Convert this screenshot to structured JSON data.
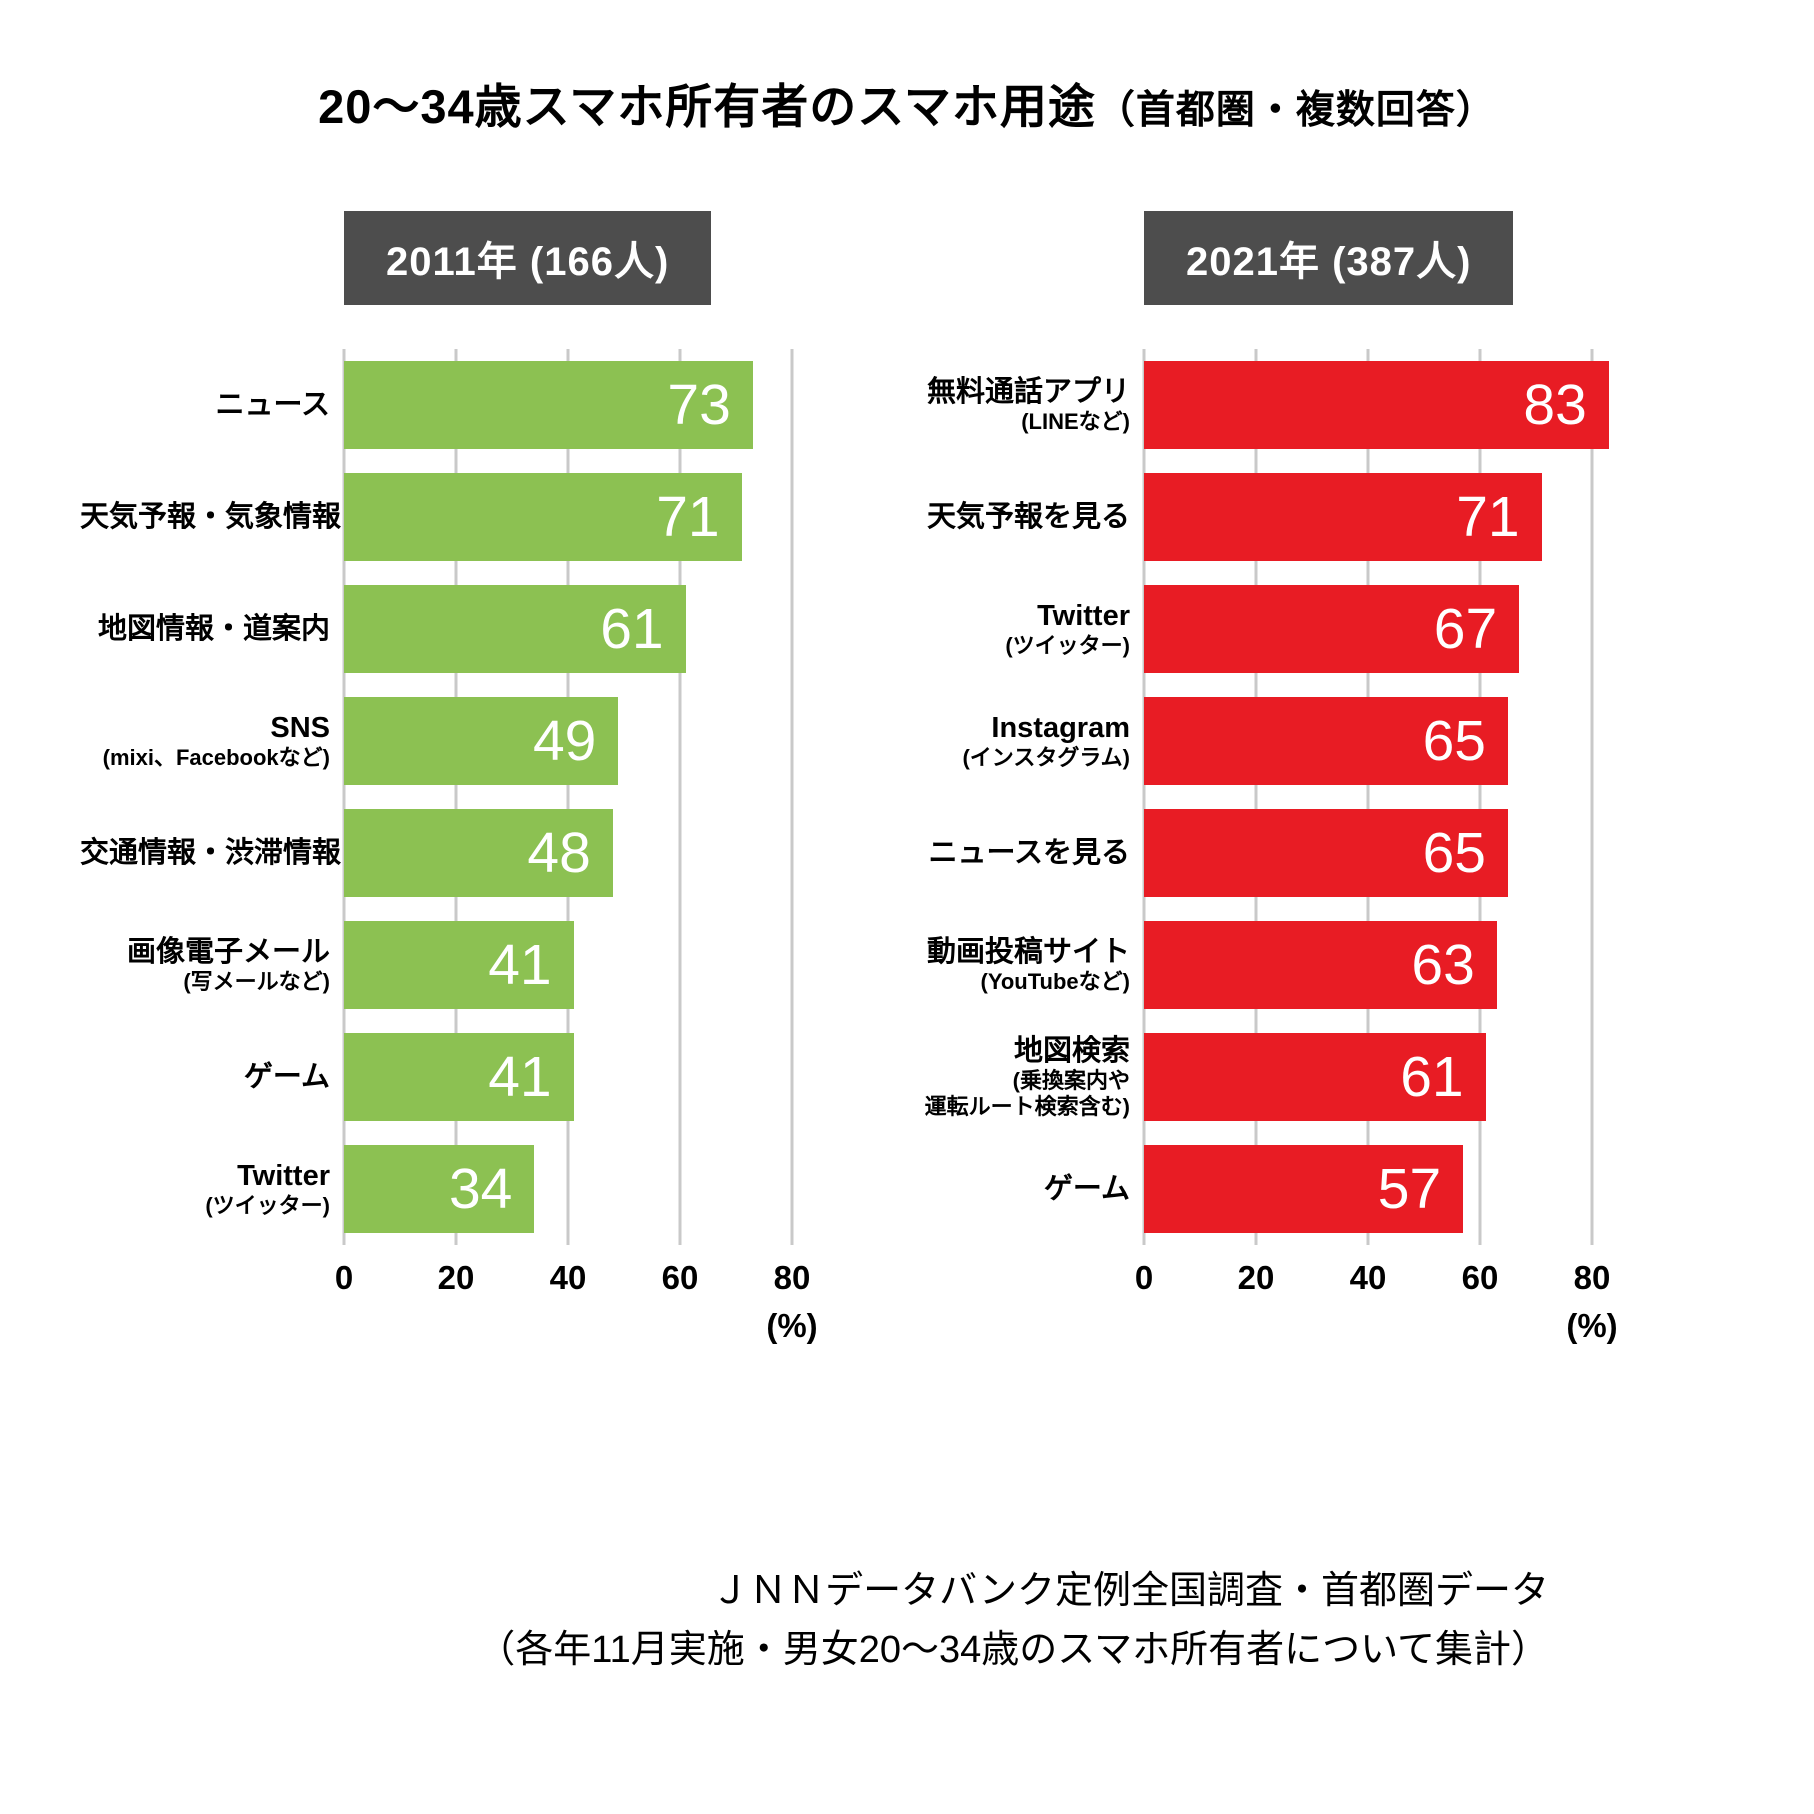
{
  "title": {
    "main": "20〜34歳スマホ所有者のスマホ用途",
    "paren": "（首都圏・複数回答）"
  },
  "footer": {
    "line1": "ＪＮＮデータバンク定例全国調査・首都圏データ",
    "line2": "（各年11月実施・男女20〜34歳のスマホ所有者について集計）"
  },
  "colors": {
    "badge_background": "#4d4d4d",
    "gridline": "#c9c9c9",
    "bar_2011": "#8cc152",
    "bar_2021": "#e81c24",
    "value_text": "#ffffff"
  },
  "chart_data": [
    {
      "type": "bar",
      "orientation": "horizontal",
      "header": "2011年 (166人)",
      "color": "#8cc152",
      "xlim": [
        0,
        80
      ],
      "ticks": [
        0,
        20,
        40,
        60,
        80
      ],
      "unit": "(%)",
      "grid": true,
      "value_labels": "inside-end",
      "categories": [
        {
          "label": "ニュース",
          "sub": []
        },
        {
          "label": "天気予報・気象情報",
          "sub": []
        },
        {
          "label": "地図情報・道案内",
          "sub": []
        },
        {
          "label": "SNS",
          "sub": [
            "(mixi、Facebookなど)"
          ]
        },
        {
          "label": "交通情報・渋滞情報",
          "sub": []
        },
        {
          "label": "画像電子メール",
          "sub": [
            "(写メールなど)"
          ]
        },
        {
          "label": "ゲーム",
          "sub": []
        },
        {
          "label": "Twitter",
          "sub": [
            "(ツイッター)"
          ]
        }
      ],
      "values": [
        73,
        71,
        61,
        49,
        48,
        41,
        41,
        34
      ]
    },
    {
      "type": "bar",
      "orientation": "horizontal",
      "header": "2021年 (387人)",
      "color": "#e81c24",
      "xlim": [
        0,
        80
      ],
      "ticks": [
        0,
        20,
        40,
        60,
        80
      ],
      "unit": "(%)",
      "grid": true,
      "value_labels": "inside-end",
      "categories": [
        {
          "label": "無料通話アプリ",
          "sub": [
            "(LINEなど)"
          ]
        },
        {
          "label": "天気予報を見る",
          "sub": []
        },
        {
          "label": "Twitter",
          "sub": [
            "(ツイッター)"
          ]
        },
        {
          "label": "Instagram",
          "sub": [
            "(インスタグラム)"
          ]
        },
        {
          "label": "ニュースを見る",
          "sub": []
        },
        {
          "label": "動画投稿サイト",
          "sub": [
            "(YouTubeなど)"
          ]
        },
        {
          "label": "地図検索",
          "sub": [
            "(乗換案内や",
            "運転ルート検索含む)"
          ]
        },
        {
          "label": "ゲーム",
          "sub": []
        }
      ],
      "values": [
        83,
        71,
        67,
        65,
        65,
        63,
        61,
        57
      ]
    }
  ]
}
